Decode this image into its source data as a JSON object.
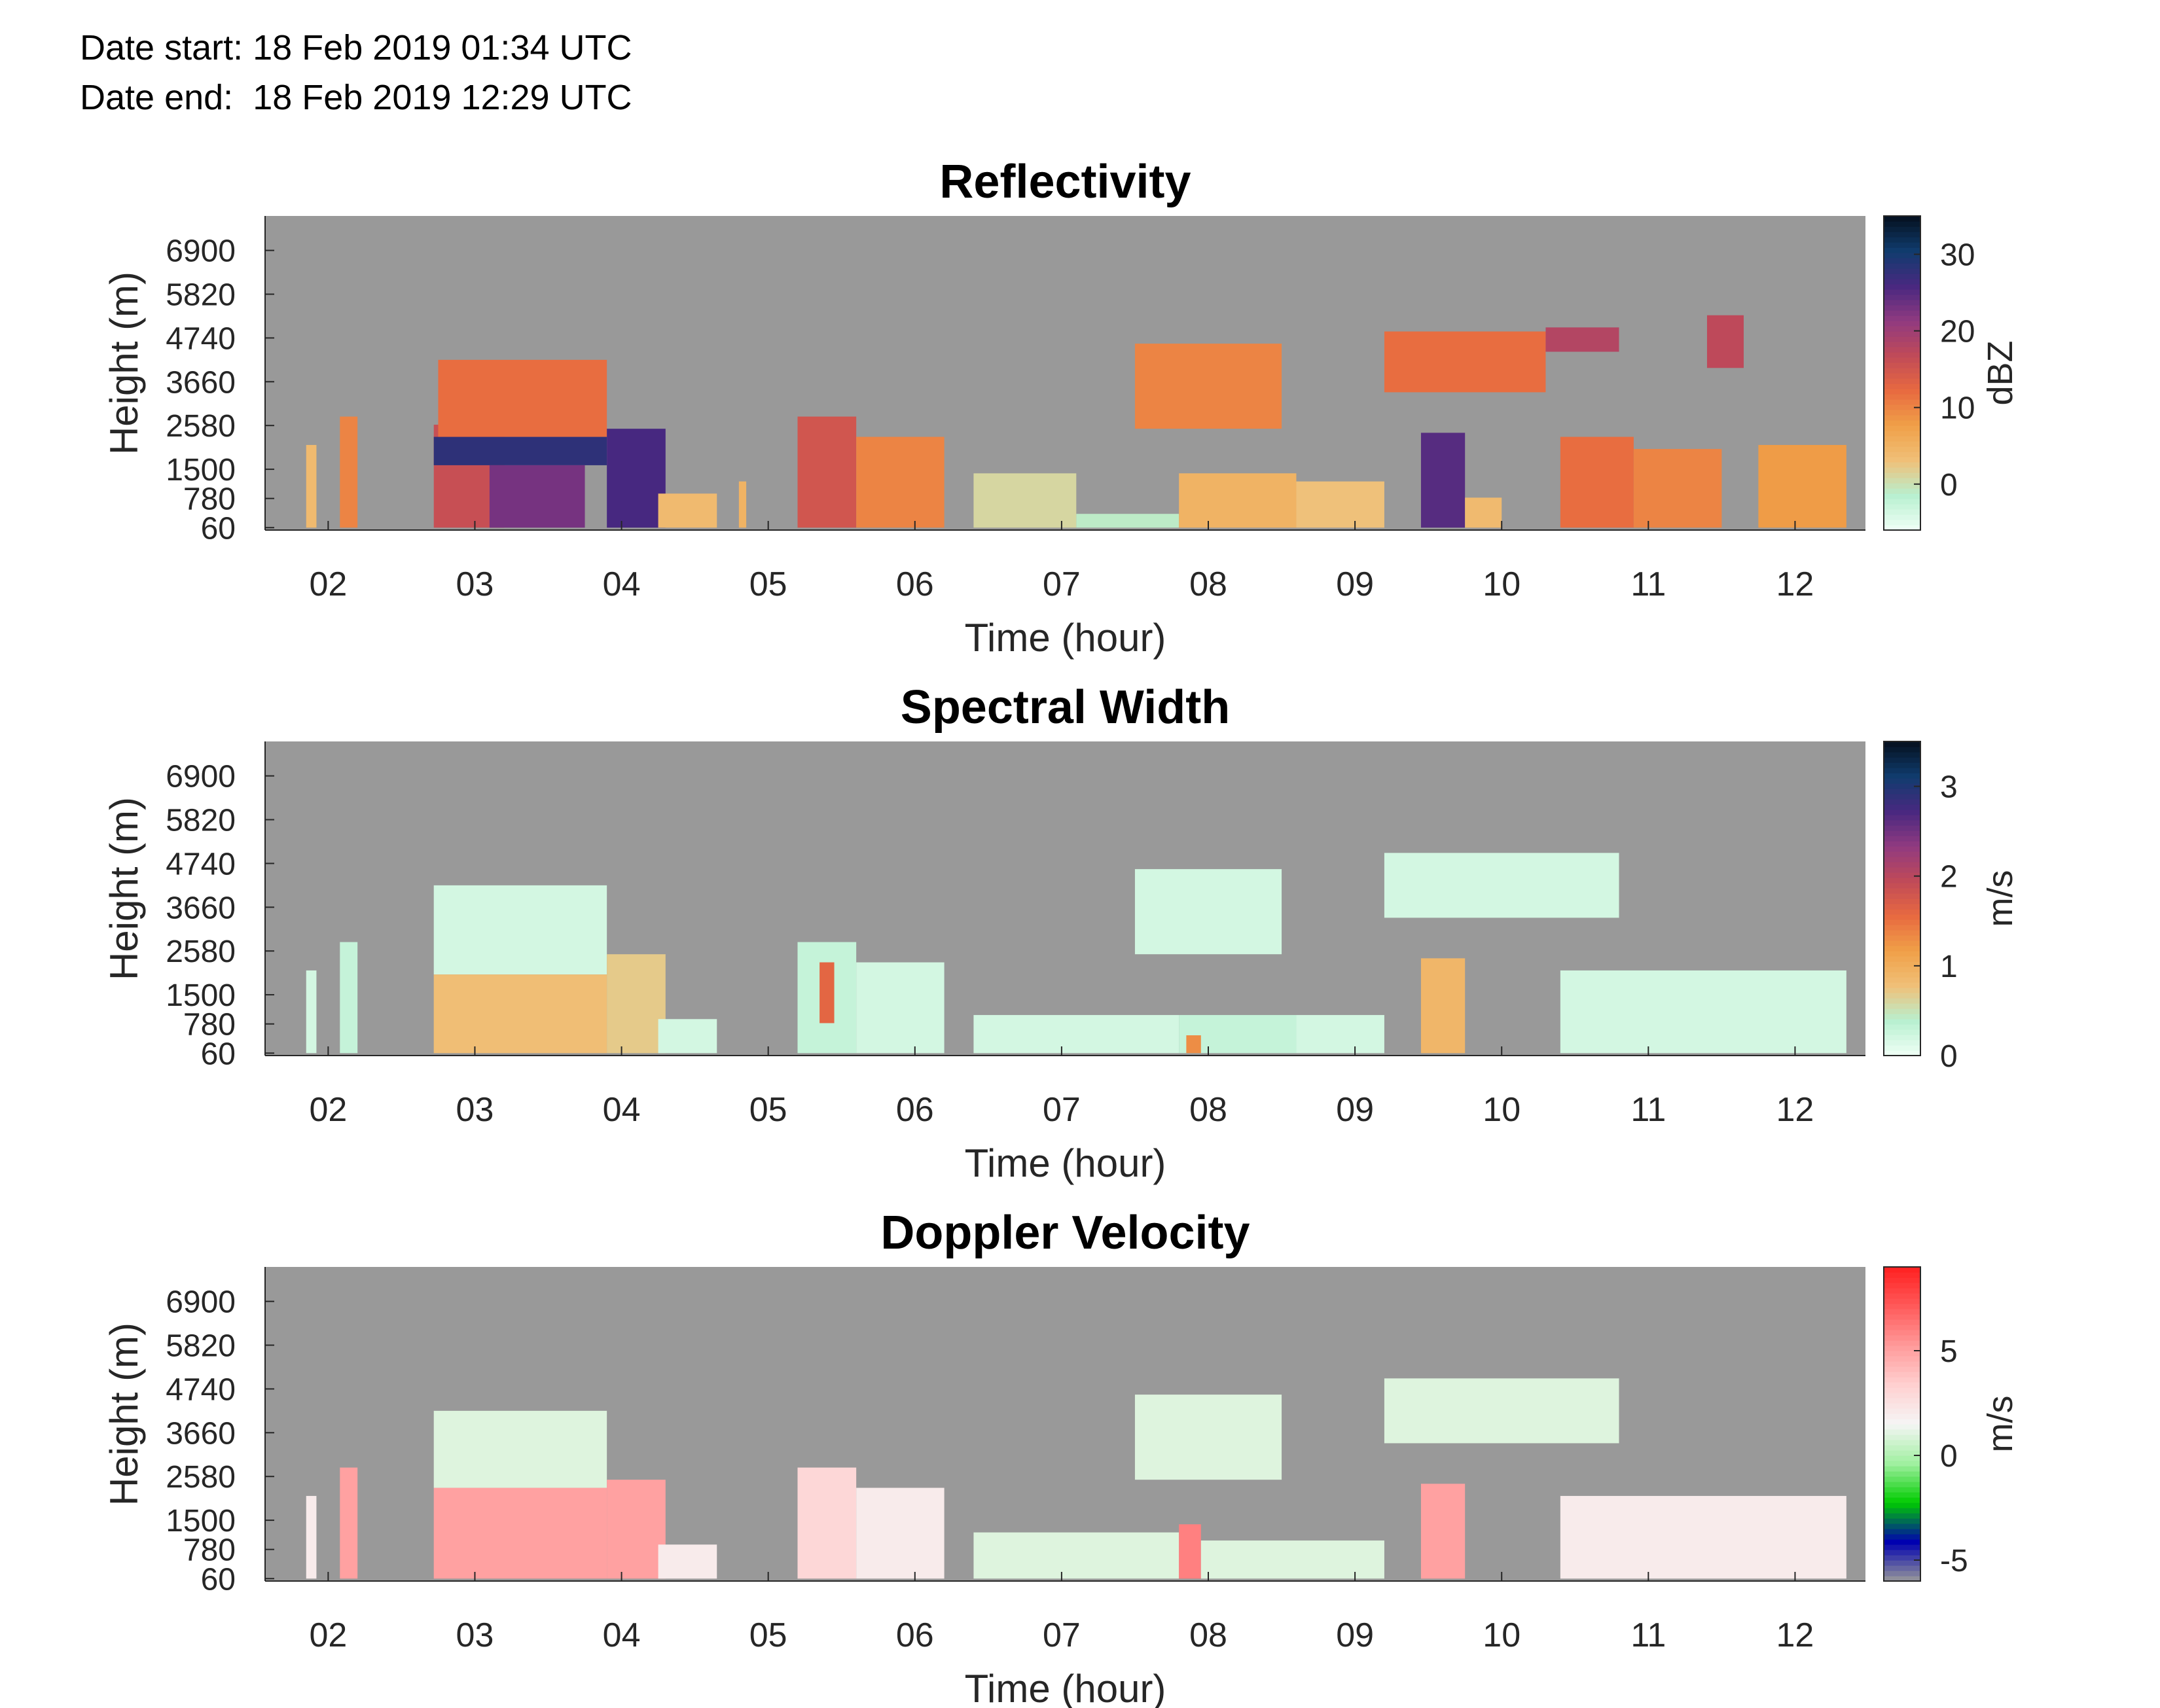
{
  "header": {
    "date_start_label": "Date start:",
    "date_start_value": "18 Feb 2019 01:34 UTC",
    "date_end_label": "Date end:",
    "date_end_value": "18 Feb 2019 12:29 UTC"
  },
  "colors": {
    "missing_data": "#999999",
    "axis": "#262626"
  },
  "chart_data": [
    {
      "type": "heatmap",
      "title": "Reflectivity",
      "xlabel": "Time (hour)",
      "ylabel": "Height (m)",
      "x_tick_labels": [
        "02",
        "03",
        "04",
        "05",
        "06",
        "07",
        "08",
        "09",
        "10",
        "11",
        "12"
      ],
      "x_ticks": [
        2,
        3,
        4,
        5,
        6,
        7,
        8,
        9,
        10,
        11,
        12
      ],
      "xlim": [
        1.57,
        12.48
      ],
      "y_tick_labels": [
        "60",
        "780",
        "1500",
        "2580",
        "3660",
        "4740",
        "5820",
        "6900"
      ],
      "y_ticks": [
        60,
        780,
        1500,
        2580,
        3660,
        4740,
        5820,
        6900
      ],
      "ylim": [
        0,
        7750
      ],
      "colorbar": {
        "label": "dBZ",
        "tick_labels": [
          "0",
          "10",
          "20",
          "30"
        ],
        "ticks": [
          0,
          10,
          20,
          30
        ],
        "range": [
          -6,
          35
        ],
        "colormap": [
          "#f0fff6",
          "#b8f0d0",
          "#f0c078",
          "#f0a048",
          "#e86a40",
          "#c04a58",
          "#903a80",
          "#482880",
          "#103c6e",
          "#05101e"
        ]
      },
      "cells": [
        {
          "t0": 1.85,
          "t1": 1.92,
          "h0": 60,
          "h1": 2100,
          "v": 4
        },
        {
          "t0": 2.08,
          "t1": 2.2,
          "h0": 60,
          "h1": 2800,
          "v": 10
        },
        {
          "t0": 2.72,
          "t1": 3.2,
          "h0": 60,
          "h1": 2600,
          "v": 16
        },
        {
          "t0": 2.72,
          "t1": 3.9,
          "h0": 1600,
          "h1": 2300,
          "v": 28
        },
        {
          "t0": 3.1,
          "t1": 3.75,
          "h0": 60,
          "h1": 1600,
          "v": 23
        },
        {
          "t0": 2.75,
          "t1": 3.9,
          "h0": 2300,
          "h1": 4200,
          "v": 12
        },
        {
          "t0": 3.9,
          "t1": 4.3,
          "h0": 60,
          "h1": 2500,
          "v": 26
        },
        {
          "t0": 4.25,
          "t1": 4.65,
          "h0": 60,
          "h1": 900,
          "v": 4
        },
        {
          "t0": 4.8,
          "t1": 4.85,
          "h0": 60,
          "h1": 1200,
          "v": 5
        },
        {
          "t0": 5.2,
          "t1": 5.6,
          "h0": 60,
          "h1": 2800,
          "v": 15
        },
        {
          "t0": 5.6,
          "t1": 6.2,
          "h0": 60,
          "h1": 2300,
          "v": 10
        },
        {
          "t0": 6.4,
          "t1": 7.1,
          "h0": 60,
          "h1": 1400,
          "v": 1
        },
        {
          "t0": 7.1,
          "t1": 7.8,
          "h0": 60,
          "h1": 400,
          "v": -1
        },
        {
          "t0": 7.8,
          "t1": 8.6,
          "h0": 60,
          "h1": 1400,
          "v": 5
        },
        {
          "t0": 7.5,
          "t1": 8.5,
          "h0": 2500,
          "h1": 4600,
          "v": 10
        },
        {
          "t0": 8.6,
          "t1": 9.2,
          "h0": 60,
          "h1": 1200,
          "v": 3
        },
        {
          "t0": 9.45,
          "t1": 9.75,
          "h0": 60,
          "h1": 2400,
          "v": 25
        },
        {
          "t0": 9.75,
          "t1": 10.0,
          "h0": 60,
          "h1": 800,
          "v": 4
        },
        {
          "t0": 9.2,
          "t1": 10.3,
          "h0": 3400,
          "h1": 4900,
          "v": 12
        },
        {
          "t0": 10.3,
          "t1": 10.8,
          "h0": 4400,
          "h1": 5000,
          "v": 18
        },
        {
          "t0": 10.4,
          "t1": 10.9,
          "h0": 60,
          "h1": 2300,
          "v": 12
        },
        {
          "t0": 10.9,
          "t1": 11.5,
          "h0": 60,
          "h1": 2000,
          "v": 10
        },
        {
          "t0": 11.4,
          "t1": 11.65,
          "h0": 4000,
          "h1": 5300,
          "v": 17
        },
        {
          "t0": 11.75,
          "t1": 12.35,
          "h0": 60,
          "h1": 2100,
          "v": 8
        }
      ]
    },
    {
      "type": "heatmap",
      "title": "Spectral Width",
      "xlabel": "Time (hour)",
      "ylabel": "Height (m)",
      "x_tick_labels": [
        "02",
        "03",
        "04",
        "05",
        "06",
        "07",
        "08",
        "09",
        "10",
        "11",
        "12"
      ],
      "x_ticks": [
        2,
        3,
        4,
        5,
        6,
        7,
        8,
        9,
        10,
        11,
        12
      ],
      "xlim": [
        1.57,
        12.48
      ],
      "y_tick_labels": [
        "60",
        "780",
        "1500",
        "2580",
        "3660",
        "4740",
        "5820",
        "6900"
      ],
      "y_ticks": [
        60,
        780,
        1500,
        2580,
        3660,
        4740,
        5820,
        6900
      ],
      "ylim": [
        0,
        7750
      ],
      "colorbar": {
        "label": "m/s",
        "tick_labels": [
          "0",
          "1",
          "2",
          "3"
        ],
        "ticks": [
          0,
          1,
          2,
          3
        ],
        "range": [
          0,
          3.5
        ],
        "colormap": [
          "#f0fff6",
          "#b8f0d0",
          "#f0c078",
          "#f0a048",
          "#e86a40",
          "#c04a58",
          "#903a80",
          "#482880",
          "#103c6e",
          "#05101e"
        ]
      },
      "cells": [
        {
          "t0": 1.85,
          "t1": 1.92,
          "h0": 60,
          "h1": 2100,
          "v": 0.2
        },
        {
          "t0": 2.08,
          "t1": 2.2,
          "h0": 60,
          "h1": 2800,
          "v": 0.3
        },
        {
          "t0": 2.72,
          "t1": 3.9,
          "h0": 2000,
          "h1": 4200,
          "v": 0.2
        },
        {
          "t0": 2.72,
          "t1": 3.9,
          "h0": 60,
          "h1": 2000,
          "v": 0.8
        },
        {
          "t0": 3.9,
          "t1": 4.3,
          "h0": 60,
          "h1": 2500,
          "v": 0.7
        },
        {
          "t0": 4.25,
          "t1": 4.65,
          "h0": 60,
          "h1": 900,
          "v": 0.2
        },
        {
          "t0": 5.2,
          "t1": 5.6,
          "h0": 60,
          "h1": 2800,
          "v": 0.3
        },
        {
          "t0": 5.35,
          "t1": 5.45,
          "h0": 800,
          "h1": 2300,
          "v": 1.6
        },
        {
          "t0": 5.6,
          "t1": 6.2,
          "h0": 60,
          "h1": 2300,
          "v": 0.2
        },
        {
          "t0": 6.4,
          "t1": 7.8,
          "h0": 60,
          "h1": 1000,
          "v": 0.2
        },
        {
          "t0": 7.8,
          "t1": 8.6,
          "h0": 60,
          "h1": 1000,
          "v": 0.3
        },
        {
          "t0": 7.85,
          "t1": 7.95,
          "h0": 60,
          "h1": 500,
          "v": 1.3
        },
        {
          "t0": 7.5,
          "t1": 8.5,
          "h0": 2500,
          "h1": 4600,
          "v": 0.2
        },
        {
          "t0": 8.6,
          "t1": 9.2,
          "h0": 60,
          "h1": 1000,
          "v": 0.2
        },
        {
          "t0": 9.45,
          "t1": 9.75,
          "h0": 60,
          "h1": 2400,
          "v": 0.9
        },
        {
          "t0": 9.2,
          "t1": 10.8,
          "h0": 3400,
          "h1": 5000,
          "v": 0.2
        },
        {
          "t0": 10.4,
          "t1": 12.35,
          "h0": 60,
          "h1": 2100,
          "v": 0.2
        }
      ]
    },
    {
      "type": "heatmap",
      "title": "Doppler Velocity",
      "xlabel": "Time (hour)",
      "ylabel": "Height (m)",
      "x_tick_labels": [
        "02",
        "03",
        "04",
        "05",
        "06",
        "07",
        "08",
        "09",
        "10",
        "11",
        "12"
      ],
      "x_ticks": [
        2,
        3,
        4,
        5,
        6,
        7,
        8,
        9,
        10,
        11,
        12
      ],
      "xlim": [
        1.57,
        12.48
      ],
      "y_tick_labels": [
        "60",
        "780",
        "1500",
        "2580",
        "3660",
        "4740",
        "5820",
        "6900"
      ],
      "y_ticks": [
        60,
        780,
        1500,
        2580,
        3660,
        4740,
        5820,
        6900
      ],
      "ylim": [
        0,
        7750
      ],
      "colorbar": {
        "label": "m/s",
        "tick_labels": [
          "-5",
          "0",
          "5"
        ],
        "ticks": [
          -5,
          0,
          5
        ],
        "range": [
          -6,
          9
        ],
        "colormap": [
          "#999999",
          "#0000b0",
          "#00cc00",
          "#a0f0a0",
          "#f5f5f5",
          "#ffd0d0",
          "#ff9a9a",
          "#ff5a5a",
          "#ff2020"
        ]
      },
      "cells": [
        {
          "t0": 1.85,
          "t1": 1.92,
          "h0": 60,
          "h1": 2100,
          "v": 2
        },
        {
          "t0": 2.08,
          "t1": 2.2,
          "h0": 60,
          "h1": 2800,
          "v": 5
        },
        {
          "t0": 2.72,
          "t1": 3.9,
          "h0": 2300,
          "h1": 4200,
          "v": 1
        },
        {
          "t0": 2.72,
          "t1": 3.9,
          "h0": 60,
          "h1": 2300,
          "v": 5
        },
        {
          "t0": 3.9,
          "t1": 4.3,
          "h0": 60,
          "h1": 2500,
          "v": 5
        },
        {
          "t0": 4.25,
          "t1": 4.65,
          "h0": 60,
          "h1": 900,
          "v": 2
        },
        {
          "t0": 5.2,
          "t1": 5.6,
          "h0": 60,
          "h1": 2800,
          "v": 3
        },
        {
          "t0": 5.6,
          "t1": 6.2,
          "h0": 60,
          "h1": 2300,
          "v": 2
        },
        {
          "t0": 6.4,
          "t1": 7.8,
          "h0": 60,
          "h1": 1200,
          "v": 1
        },
        {
          "t0": 7.8,
          "t1": 7.95,
          "h0": 60,
          "h1": 1400,
          "v": 6
        },
        {
          "t0": 7.95,
          "t1": 9.2,
          "h0": 60,
          "h1": 1000,
          "v": 1
        },
        {
          "t0": 7.5,
          "t1": 8.5,
          "h0": 2500,
          "h1": 4600,
          "v": 1
        },
        {
          "t0": 9.45,
          "t1": 9.75,
          "h0": 60,
          "h1": 2400,
          "v": 5
        },
        {
          "t0": 9.2,
          "t1": 10.8,
          "h0": 3400,
          "h1": 5000,
          "v": 1
        },
        {
          "t0": 10.4,
          "t1": 12.35,
          "h0": 60,
          "h1": 2100,
          "v": 2
        }
      ]
    }
  ]
}
